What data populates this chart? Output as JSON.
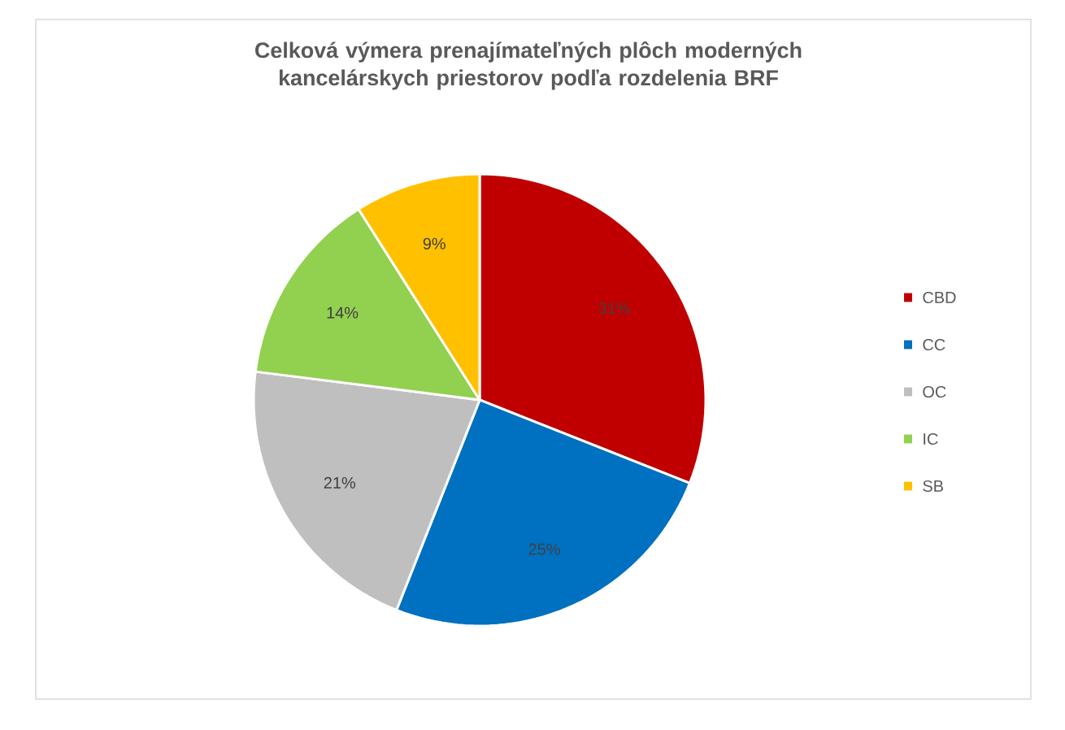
{
  "chart_data": {
    "type": "pie",
    "title": "Celková výmera prenajímateľných plôch moderných kancelárskych priestorov podľa rozdelenia BRF",
    "categories": [
      "CBD",
      "CC",
      "OC",
      "IC",
      "SB"
    ],
    "values": [
      31,
      25,
      21,
      14,
      9
    ],
    "colors": [
      "#c00000",
      "#0070c0",
      "#bfbfbf",
      "#92d050",
      "#ffc000"
    ],
    "value_labels": [
      "31%",
      "25%",
      "21%",
      "14%",
      "9%"
    ],
    "legend": "right"
  }
}
